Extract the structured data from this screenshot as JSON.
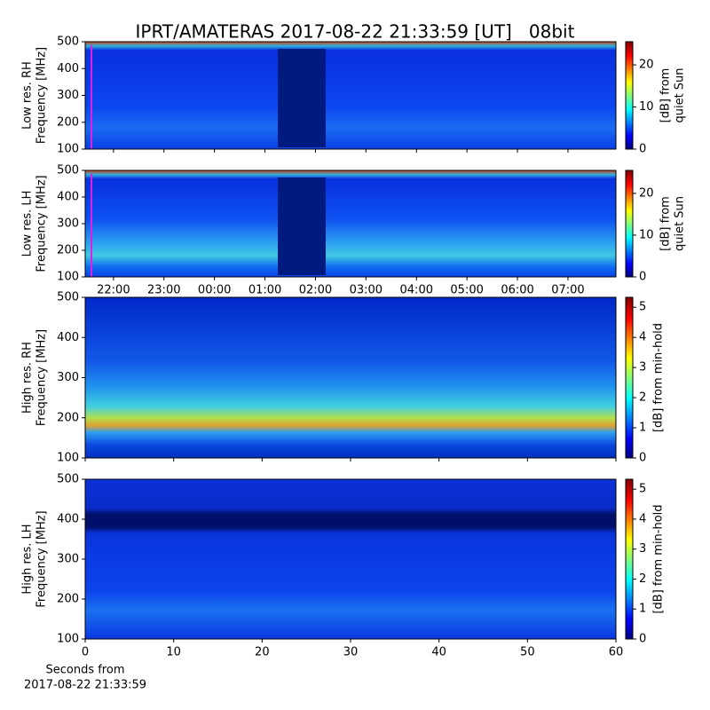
{
  "title": "IPRT/AMATERAS 2017-08-22 21:33:59 [UT]   08bit",
  "chart_data": [
    {
      "type": "heatmap",
      "ylabel": [
        "Low res. RH",
        "Frequency [MHz]"
      ],
      "ylim": [
        100,
        500
      ],
      "yticks": [
        100,
        200,
        300,
        400,
        500
      ],
      "xlim": [
        21.44,
        31.95
      ],
      "xticks": [
        {
          "value": 22,
          "label": "22:00"
        },
        {
          "value": 23,
          "label": "23:00"
        },
        {
          "value": 24,
          "label": "00:00"
        },
        {
          "value": 25,
          "label": "01:00"
        },
        {
          "value": 26,
          "label": "02:00"
        },
        {
          "value": 27,
          "label": "03:00"
        },
        {
          "value": 28,
          "label": "04:00"
        },
        {
          "value": 29,
          "label": "05:00"
        },
        {
          "value": 30,
          "label": "06:00"
        },
        {
          "value": 31,
          "label": "07:00"
        }
      ],
      "show_xtick_labels": false,
      "colorbar": {
        "label": [
          "[dB] from",
          "quiet Sun"
        ],
        "lim": [
          0,
          25.5
        ],
        "ticks": [
          0,
          10,
          20
        ]
      }
    },
    {
      "type": "heatmap",
      "ylabel": [
        "Low res. LH",
        "Frequency [MHz]"
      ],
      "ylim": [
        100,
        500
      ],
      "yticks": [
        100,
        200,
        300,
        400,
        500
      ],
      "xlim": [
        21.44,
        31.95
      ],
      "xticks": [
        {
          "value": 22,
          "label": "22:00"
        },
        {
          "value": 23,
          "label": "23:00"
        },
        {
          "value": 24,
          "label": "00:00"
        },
        {
          "value": 25,
          "label": "01:00"
        },
        {
          "value": 26,
          "label": "02:00"
        },
        {
          "value": 27,
          "label": "03:00"
        },
        {
          "value": 28,
          "label": "04:00"
        },
        {
          "value": 29,
          "label": "05:00"
        },
        {
          "value": 30,
          "label": "06:00"
        },
        {
          "value": 31,
          "label": "07:00"
        }
      ],
      "show_xtick_labels": true,
      "colorbar": {
        "label": [
          "[dB] from",
          "quiet Sun"
        ],
        "lim": [
          0,
          25.5
        ],
        "ticks": [
          0,
          10,
          20
        ]
      }
    },
    {
      "type": "heatmap",
      "ylabel": [
        "High res. RH",
        "Frequency [MHz]"
      ],
      "ylim": [
        100,
        500
      ],
      "yticks": [
        100,
        200,
        300,
        400,
        500
      ],
      "xlim": [
        0,
        60
      ],
      "xticks": [
        0,
        10,
        20,
        30,
        40,
        50,
        60
      ],
      "show_xtick_labels": false,
      "colorbar": {
        "label": [
          "[dB] from min-hold"
        ],
        "lim": [
          0,
          5.33
        ],
        "ticks": [
          0,
          1,
          2,
          3,
          4,
          5
        ]
      }
    },
    {
      "type": "heatmap",
      "ylabel": [
        "High res. LH",
        "Frequency [MHz]"
      ],
      "ylim": [
        100,
        500
      ],
      "yticks": [
        100,
        200,
        300,
        400,
        500
      ],
      "xlim": [
        0,
        60
      ],
      "xticks": [
        0,
        10,
        20,
        30,
        40,
        50,
        60
      ],
      "show_xtick_labels": true,
      "xlabel": [
        "Seconds from",
        "2017-08-22 21:33:59"
      ],
      "colorbar": {
        "label": [
          "[dB] from min-hold"
        ],
        "lim": [
          0,
          5.33
        ],
        "ticks": [
          0,
          1,
          2,
          3,
          4,
          5
        ]
      }
    }
  ]
}
